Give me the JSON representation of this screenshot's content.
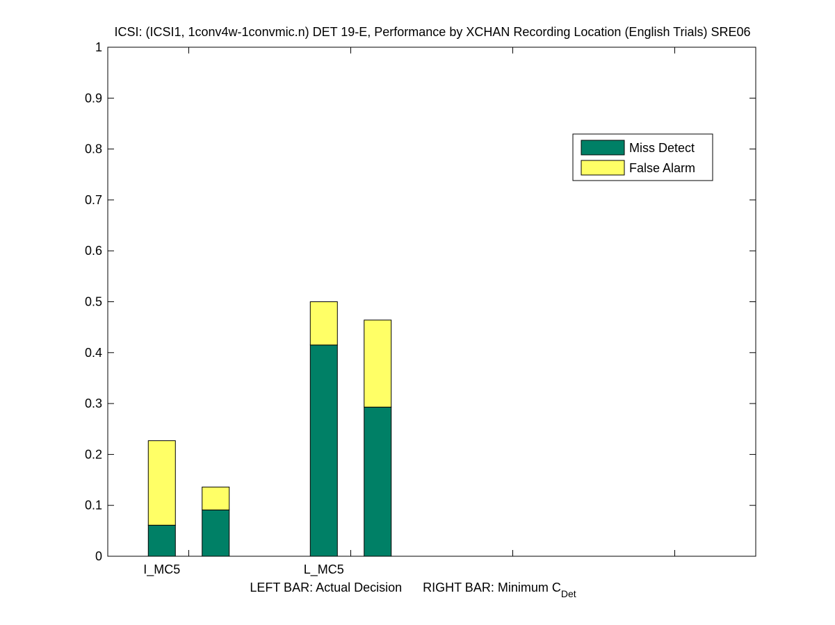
{
  "chart_data": {
    "type": "bar",
    "stacked": true,
    "title": "ICSI: (ICSI1, 1conv4w-1convmic.n) DET 19-E,  Performance by XCHAN Recording Location (English Trials) SRE06",
    "xlabel": {
      "left": "LEFT BAR: Actual Decision",
      "right": "RIGHT BAR: Minimum C",
      "right_subscript": "Det"
    },
    "ylabel": "",
    "ylim": [
      0,
      1
    ],
    "yticks": [
      "0",
      "0.1",
      "0.2",
      "0.3",
      "0.4",
      "0.5",
      "0.6",
      "0.7",
      "0.8",
      "0.9",
      "1"
    ],
    "categories": [
      "I_MC5",
      "L_MC5"
    ],
    "bar_roles": [
      "Actual Decision",
      "Minimum C_Det"
    ],
    "series": [
      {
        "name": "Miss Detect",
        "color": "#008066",
        "values": [
          [
            0.061,
            0.091
          ],
          [
            0.415,
            0.293
          ]
        ]
      },
      {
        "name": "False Alarm",
        "color": "#ffff66",
        "values": [
          [
            0.166,
            0.045
          ],
          [
            0.085,
            0.171
          ]
        ]
      }
    ],
    "legend": {
      "position": "top-right",
      "entries": [
        "Miss Detect",
        "False Alarm"
      ]
    },
    "grid": false
  }
}
